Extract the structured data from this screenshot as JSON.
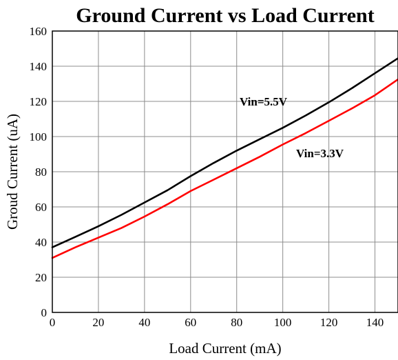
{
  "chart_data": {
    "type": "line",
    "title": "Ground Current vs Load Current",
    "xlabel": "Load Current (mA)",
    "ylabel": "Groud Current (uA)",
    "xlim": [
      0,
      150
    ],
    "ylim": [
      0,
      160
    ],
    "x_ticks": [
      "0",
      "20",
      "40",
      "60",
      "80",
      "100",
      "120",
      "140"
    ],
    "y_ticks": [
      "0",
      "20",
      "40",
      "60",
      "80",
      "100",
      "120",
      "140",
      "160"
    ],
    "grid": true,
    "series": [
      {
        "name": "Vin=5.5V",
        "color": "#000000",
        "x": [
          0,
          10,
          20,
          30,
          40,
          50,
          60,
          70,
          80,
          90,
          100,
          110,
          120,
          130,
          140,
          150
        ],
        "y": [
          37,
          43,
          49,
          55.5,
          62.5,
          69.5,
          77.5,
          85,
          92,
          98.5,
          105,
          112,
          119.5,
          127.5,
          136,
          144.5
        ]
      },
      {
        "name": "Vin=3.3V",
        "color": "#ff0000",
        "x": [
          0,
          10,
          20,
          30,
          40,
          50,
          60,
          70,
          80,
          90,
          100,
          110,
          120,
          130,
          140,
          150
        ],
        "y": [
          31,
          37,
          42.5,
          48,
          54.5,
          61.5,
          69,
          75.5,
          82,
          88.5,
          95.5,
          102,
          109,
          116,
          123.5,
          132.5
        ]
      }
    ]
  }
}
